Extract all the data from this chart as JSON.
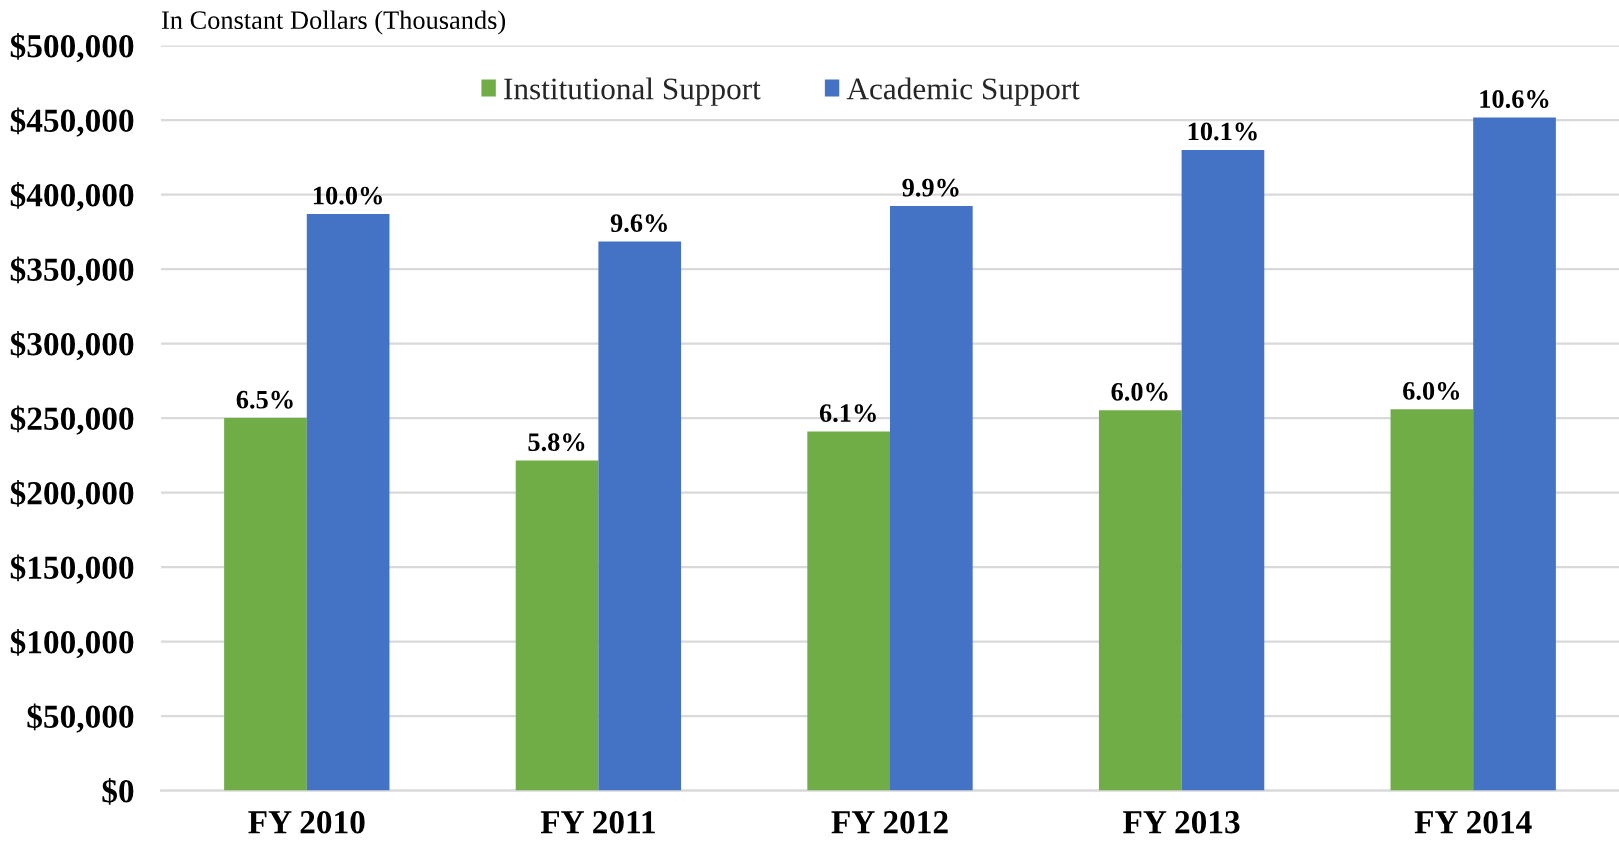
{
  "chart_data": {
    "type": "bar",
    "ylabel": "In Constant Dollars (Thousands)",
    "categories": [
      "FY 2010",
      "FY 2011",
      "FY 2012",
      "FY 2013",
      "FY 2014"
    ],
    "series": [
      {
        "name": "Institutional Support",
        "color": "#70ad47",
        "values": [
          250000,
          221500,
          241000,
          255300,
          255900
        ]
      },
      {
        "name": "Academic Support",
        "color": "#4472c4",
        "values": [
          387000,
          368500,
          392300,
          430000,
          451800
        ]
      }
    ],
    "annotations": [
      {
        "text": "6.5%",
        "x": "FY 2010",
        "y": 250000
      },
      {
        "text": "5.8%",
        "x": "FY 2011",
        "y": 221500
      },
      {
        "text": "6.1%",
        "x": "FY 2012",
        "y": 241000
      },
      {
        "text": "6.0%",
        "x": "FY 2013",
        "y": 255300
      },
      {
        "text": "6.0%",
        "x": "FY 2014",
        "y": 255900
      },
      {
        "text": "10.0%",
        "x": "FY 2010",
        "y": 387000
      },
      {
        "text": "9.6%",
        "x": "FY 2011",
        "y": 368500
      },
      {
        "text": "9.9%",
        "x": "FY 2012",
        "y": 392300
      },
      {
        "text": "10.1%",
        "x": "FY 2013",
        "y": 430000
      },
      {
        "text": "10.6%",
        "x": "FY 2014",
        "y": 451800
      }
    ],
    "ylim": [
      0,
      500000
    ],
    "yticks": [
      {
        "value": 0,
        "label": "$0"
      },
      {
        "value": 50000,
        "label": "$50,000"
      },
      {
        "value": 100000,
        "label": "$100,000"
      },
      {
        "value": 150000,
        "label": "$150,000"
      },
      {
        "value": 200000,
        "label": "$200,000"
      },
      {
        "value": 250000,
        "label": "$250,000"
      },
      {
        "value": 300000,
        "label": "$300,000"
      },
      {
        "value": 350000,
        "label": "$350,000"
      },
      {
        "value": 400000,
        "label": "$400,000"
      },
      {
        "value": 450000,
        "label": "$450,000"
      },
      {
        "value": 500000,
        "label": "$500,000"
      }
    ],
    "grid": "y",
    "legend": "top"
  }
}
